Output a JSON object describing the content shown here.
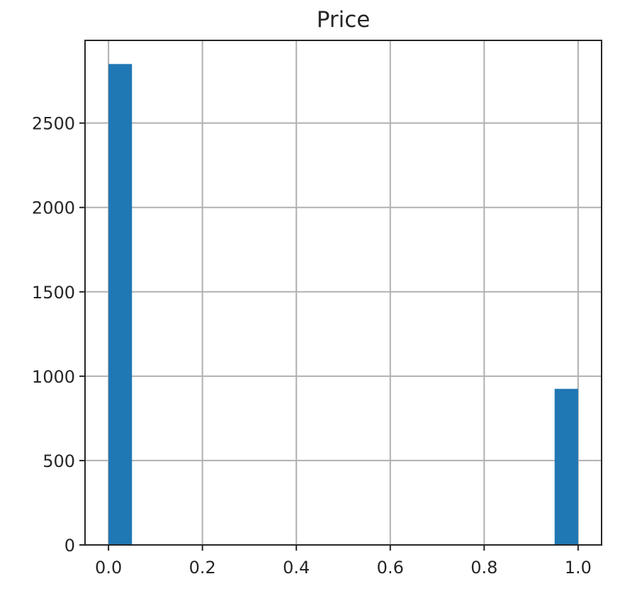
{
  "chart_data": {
    "type": "bar",
    "title": "Price",
    "xlabel": "",
    "ylabel": "",
    "xlim": [
      -0.05,
      1.05
    ],
    "ylim": [
      0,
      2990
    ],
    "x_ticks": [
      0.0,
      0.2,
      0.4,
      0.6,
      0.8,
      1.0
    ],
    "x_tick_labels": [
      "0.0",
      "0.2",
      "0.4",
      "0.6",
      "0.8",
      "1.0"
    ],
    "y_ticks": [
      0,
      500,
      1000,
      1500,
      2000,
      2500
    ],
    "y_tick_labels": [
      "0",
      "500",
      "1000",
      "1500",
      "2000",
      "2500"
    ],
    "bins": [
      {
        "x0": 0.0,
        "x1": 0.05,
        "count": 2850
      },
      {
        "x0": 0.95,
        "x1": 1.0,
        "count": 925
      }
    ],
    "grid": true,
    "bar_color": "#1f77b4"
  }
}
